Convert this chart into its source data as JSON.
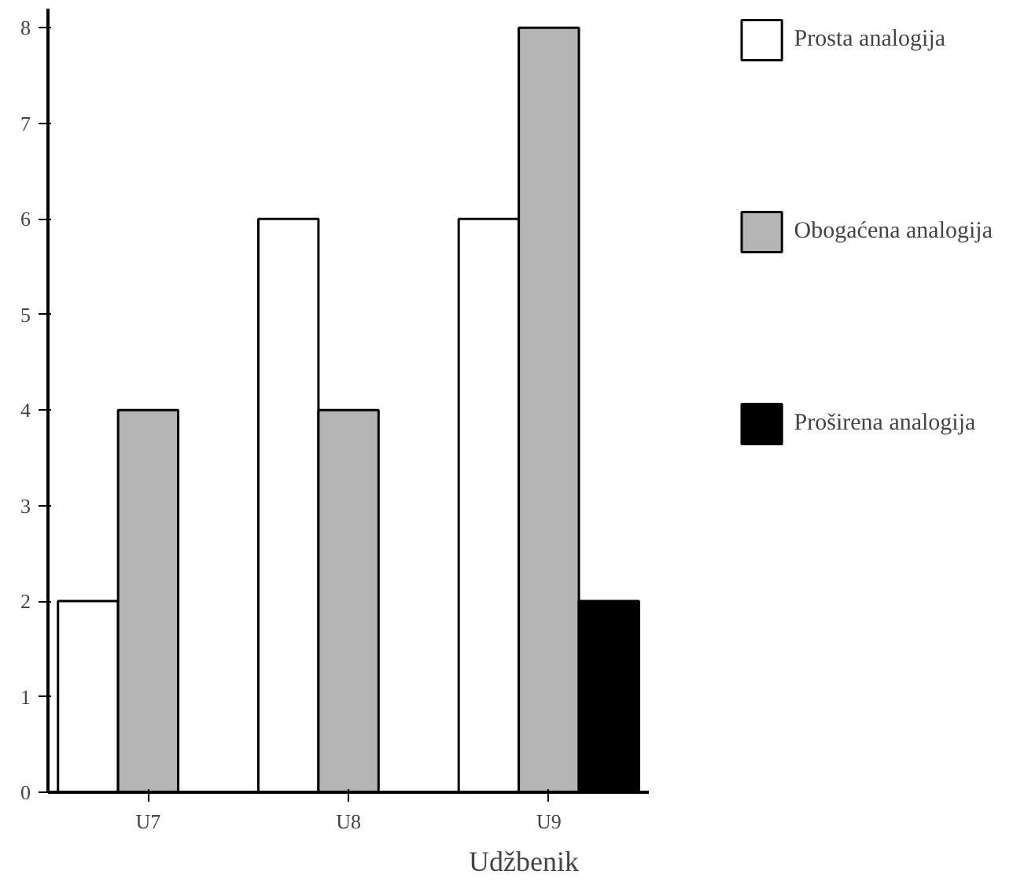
{
  "chart_data": {
    "type": "bar",
    "xlabel": "Udžbenik",
    "categories": [
      "U7",
      "U8",
      "U9"
    ],
    "series": [
      {
        "name": "Prosta analogija",
        "color": "#ffffff",
        "values": [
          2,
          6,
          6
        ]
      },
      {
        "name": "Obogaćena analogija",
        "color": "#b4b4b4",
        "values": [
          4,
          4,
          8
        ]
      },
      {
        "name": "Proširena analogija",
        "color": "#000000",
        "values": [
          0,
          0,
          2
        ]
      }
    ],
    "ylim": [
      0,
      8.2
    ],
    "yticks": [
      0,
      1,
      2,
      3,
      4,
      5,
      6,
      7,
      8
    ],
    "grid": false,
    "legend": "right"
  }
}
